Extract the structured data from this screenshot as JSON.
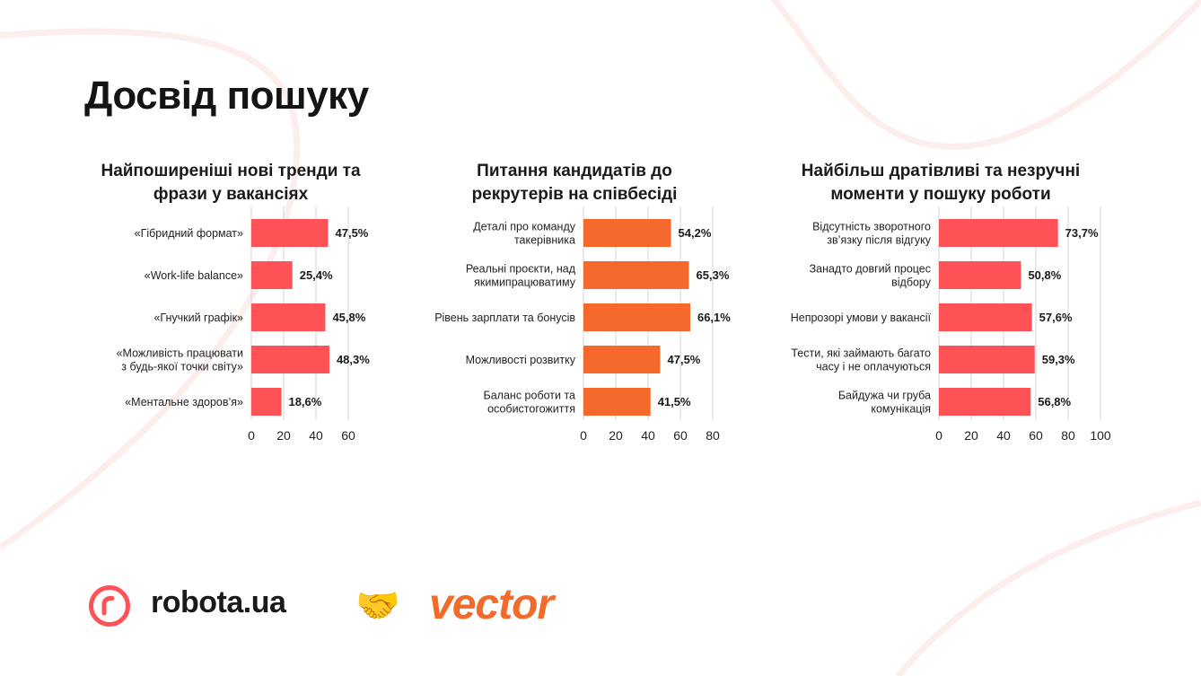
{
  "page": {
    "title": "Досвід пошуку"
  },
  "colors": {
    "red": "#ff5257",
    "orange": "#f56a2c",
    "deco": "#fdeeee"
  },
  "footer": {
    "brand1": "robota.ua",
    "brand1_icon": "r-logo-icon",
    "partnership_icon": "handshake-icon",
    "brand2": "vector"
  },
  "chart_data": [
    {
      "type": "bar",
      "orientation": "horizontal",
      "title": "Найпоширеніші нові тренди та\nфрази у вакансіях",
      "categories": [
        "«Гібридний формат»",
        "«Work-life balance»",
        "«Гнучкий графік»",
        "«Можливість працювати\nз будь-якої точки світу»",
        "«Ментальне здоров’я»"
      ],
      "values": [
        47.5,
        25.4,
        45.8,
        48.3,
        18.6
      ],
      "value_labels": [
        "47,5%",
        "25,4%",
        "45,8%",
        "48,3%",
        "18,6%"
      ],
      "xlim": [
        0,
        60
      ],
      "xticks": [
        0,
        20,
        40,
        60
      ],
      "grid": true,
      "color": "#ff5257"
    },
    {
      "type": "bar",
      "orientation": "horizontal",
      "title": "Питання кандидатів до\nрекрутерів на співбесіді",
      "categories": [
        "Деталі про команду\nтакерівника",
        "Реальні проєкти, над\nякимипрацюватиму",
        "Рівень зарплати та бонусів",
        "Можливості розвитку",
        "Баланс роботи та\nособистогожиття"
      ],
      "values": [
        54.2,
        65.3,
        66.1,
        47.5,
        41.5
      ],
      "value_labels": [
        "54,2%",
        "65,3%",
        "66,1%",
        "47,5%",
        "41,5%"
      ],
      "xlim": [
        0,
        80
      ],
      "xticks": [
        0,
        20,
        40,
        60,
        80
      ],
      "grid": true,
      "color": "#f56a2c"
    },
    {
      "type": "bar",
      "orientation": "horizontal",
      "title": "Найбільш дратівливі та незручні\nмоменти у пошуку роботи",
      "categories": [
        "Відсутність зворотного\nзв’язку після відгуку",
        "Занадто довгий процес\nвідбору",
        "Непрозорі умови у вакансії",
        "Тести, які займають багато\nчасу і не оплачуються",
        "Байдужа чи груба\nкомунікація"
      ],
      "values": [
        73.7,
        50.8,
        57.6,
        59.3,
        56.8
      ],
      "value_labels": [
        "73,7%",
        "50,8%",
        "57,6%",
        "59,3%",
        "56,8%"
      ],
      "xlim": [
        0,
        100
      ],
      "xticks": [
        0,
        20,
        40,
        60,
        80,
        100
      ],
      "grid": true,
      "color": "#ff5257"
    }
  ]
}
